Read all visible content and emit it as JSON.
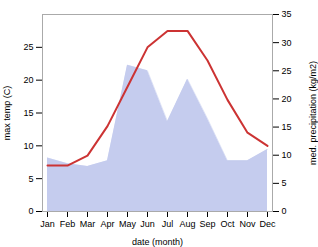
{
  "chart_data": {
    "type": "line",
    "categories": [
      "Jan",
      "Feb",
      "Mar",
      "Apr",
      "May",
      "Jun",
      "Jul",
      "Aug",
      "Sep",
      "Oct",
      "Nov",
      "Dec"
    ],
    "xlabel": "date (month)",
    "ylabel": "max temp (C)",
    "y2label": "med. precipitation (kg/m2)",
    "series": [
      {
        "type": "area",
        "color": "#c5ccee",
        "axis": "y2",
        "values": [
          9.5,
          8.5,
          8.0,
          9.0,
          26.0,
          25.0,
          16.0,
          23.5,
          16.5,
          9.0,
          9.0,
          11.0
        ]
      },
      {
        "type": "line",
        "color": "#cc3333",
        "values": [
          7.0,
          7.0,
          8.5,
          13.0,
          19.0,
          25.0,
          27.5,
          27.5,
          23.0,
          17.0,
          12.0,
          10.0
        ]
      }
    ],
    "ylim": [
      0,
      30
    ],
    "yticks": [
      0,
      5,
      10,
      15,
      20,
      25
    ],
    "y2lim": [
      0,
      35
    ],
    "y2ticks": [
      0,
      5,
      10,
      15,
      20,
      25,
      30,
      35
    ],
    "grid": false
  }
}
